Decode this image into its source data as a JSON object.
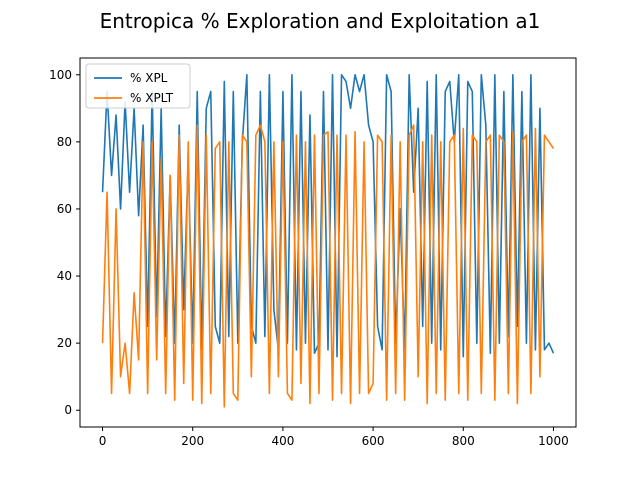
{
  "chart_data": {
    "type": "line",
    "title": "Entropica % Exploration and Exploitation a1",
    "xlabel": "",
    "ylabel": "",
    "xlim": [
      -50,
      1050
    ],
    "ylim": [
      -5,
      105
    ],
    "x_ticks": [
      0,
      200,
      400,
      600,
      800,
      1000
    ],
    "y_ticks": [
      0,
      20,
      40,
      60,
      80,
      100
    ],
    "x_tick_labels": [
      "0",
      "200",
      "400",
      "600",
      "800",
      "1000"
    ],
    "y_tick_labels": [
      "0",
      "20",
      "40",
      "60",
      "80",
      "100"
    ],
    "grid": false,
    "legend_position": "top-left",
    "x_start": 0,
    "x_step": 10,
    "series": [
      {
        "name": "% XPL",
        "color": "#1f77b4",
        "values": [
          65,
          95,
          70,
          88,
          60,
          92,
          65,
          90,
          58,
          85,
          25,
          95,
          28,
          90,
          22,
          70,
          20,
          85,
          30,
          75,
          20,
          95,
          18,
          90,
          95,
          25,
          20,
          98,
          22,
          95,
          20,
          80,
          100,
          25,
          20,
          95,
          22,
          100,
          30,
          18,
          95,
          20,
          100,
          18,
          95,
          20,
          88,
          17,
          20,
          95,
          18,
          100,
          16,
          100,
          98,
          90,
          100,
          95,
          100,
          85,
          80,
          25,
          18,
          100,
          95,
          20,
          60,
          18,
          100,
          65,
          90,
          25,
          98,
          20,
          100,
          18,
          95,
          98,
          80,
          100,
          16,
          98,
          95,
          20,
          100,
          85,
          17,
          100,
          20,
          95,
          22,
          100,
          25,
          95,
          20,
          100,
          18,
          90,
          18,
          20,
          17
        ]
      },
      {
        "name": "% XPLT",
        "color": "#ff7f0e",
        "values": [
          20,
          65,
          5,
          60,
          10,
          20,
          5,
          35,
          15,
          80,
          5,
          80,
          15,
          75,
          5,
          70,
          3,
          82,
          8,
          80,
          3,
          85,
          2,
          82,
          5,
          78,
          80,
          1,
          80,
          5,
          3,
          82,
          80,
          10,
          82,
          85,
          80,
          5,
          80,
          10,
          80,
          5,
          3,
          82,
          8,
          80,
          2,
          82,
          5,
          82,
          83,
          3,
          82,
          5,
          82,
          2,
          83,
          5,
          80,
          5,
          8,
          82,
          80,
          3,
          82,
          5,
          80,
          3,
          82,
          85,
          10,
          80,
          2,
          82,
          5,
          80,
          3,
          80,
          82,
          5,
          84,
          3,
          82,
          80,
          5,
          80,
          82,
          3,
          82,
          80,
          5,
          83,
          2,
          80,
          82,
          5,
          84,
          10,
          82,
          80,
          78
        ]
      }
    ]
  }
}
